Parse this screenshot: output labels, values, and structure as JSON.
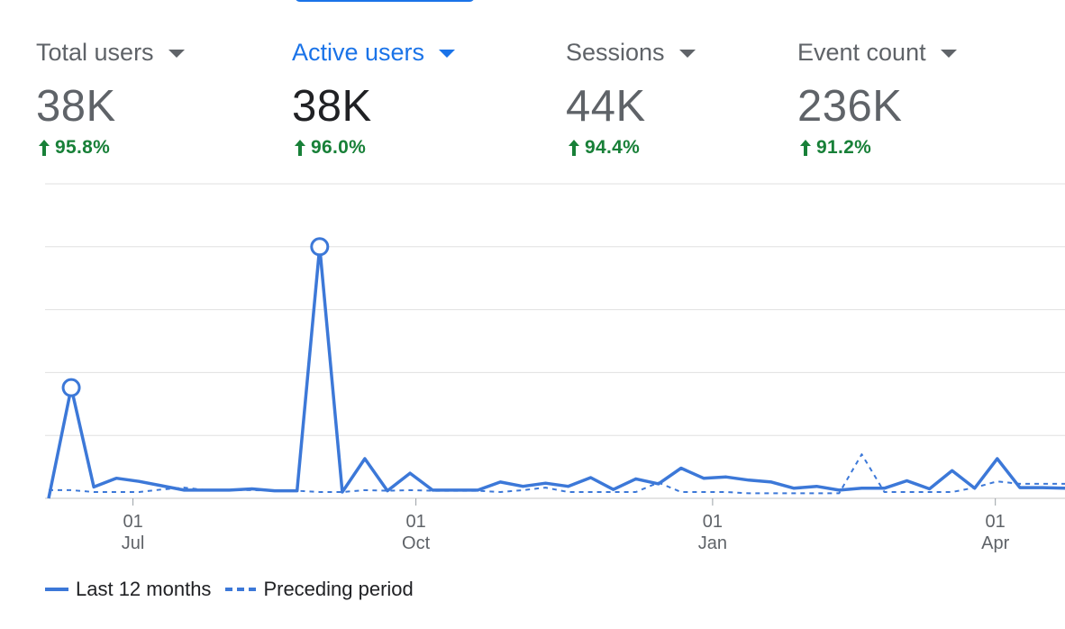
{
  "metrics": [
    {
      "label": "Total users",
      "value": "38K",
      "change": "95.8%",
      "active": false
    },
    {
      "label": "Active users",
      "value": "38K",
      "change": "96.0%",
      "active": true
    },
    {
      "label": "Sessions",
      "value": "44K",
      "change": "94.4%",
      "active": false
    },
    {
      "label": "Event count",
      "value": "236K",
      "change": "91.2%",
      "active": false
    }
  ],
  "colors": {
    "accent": "#1a73e8",
    "series": "#3c78d8",
    "positive": "#188038",
    "grid": "#e0e0e0",
    "text": "#5f6368"
  },
  "chart_data": {
    "type": "line",
    "x_ticks": [
      {
        "day": "01",
        "month": "Jul"
      },
      {
        "day": "01",
        "month": "Oct"
      },
      {
        "day": "01",
        "month": "Jan"
      },
      {
        "day": "01",
        "month": "Apr"
      }
    ],
    "ylim": [
      0,
      5
    ],
    "grid": true,
    "y_tick_labels_visible": false,
    "legend_position": "bottom-left",
    "series": [
      {
        "name": "Last 12 months",
        "style": "solid",
        "values": [
          0,
          1.76,
          0.18,
          0.32,
          0.27,
          0.2,
          0.13,
          0.13,
          0.13,
          0.15,
          0.12,
          0.12,
          4.0,
          0.1,
          0.63,
          0.12,
          0.4,
          0.13,
          0.13,
          0.13,
          0.26,
          0.19,
          0.24,
          0.19,
          0.33,
          0.14,
          0.31,
          0.23,
          0.48,
          0.32,
          0.34,
          0.29,
          0.26,
          0.16,
          0.19,
          0.13,
          0.16,
          0.16,
          0.28,
          0.15,
          0.44,
          0.16,
          0.63,
          0.17,
          0.17,
          0.16
        ],
        "markers": [
          1,
          12
        ]
      },
      {
        "name": "Preceding period",
        "style": "dashed",
        "values": [
          0.13,
          0.13,
          0.1,
          0.1,
          0.1,
          0.14,
          0.17,
          0.13,
          0.13,
          0.13,
          0.12,
          0.12,
          0.1,
          0.1,
          0.13,
          0.12,
          0.13,
          0.12,
          0.12,
          0.12,
          0.1,
          0.13,
          0.17,
          0.1,
          0.1,
          0.1,
          0.1,
          0.25,
          0.1,
          0.1,
          0.1,
          0.08,
          0.08,
          0.08,
          0.08,
          0.08,
          0.7,
          0.1,
          0.1,
          0.1,
          0.1,
          0.17,
          0.27,
          0.23,
          0.23,
          0.23
        ]
      }
    ]
  }
}
